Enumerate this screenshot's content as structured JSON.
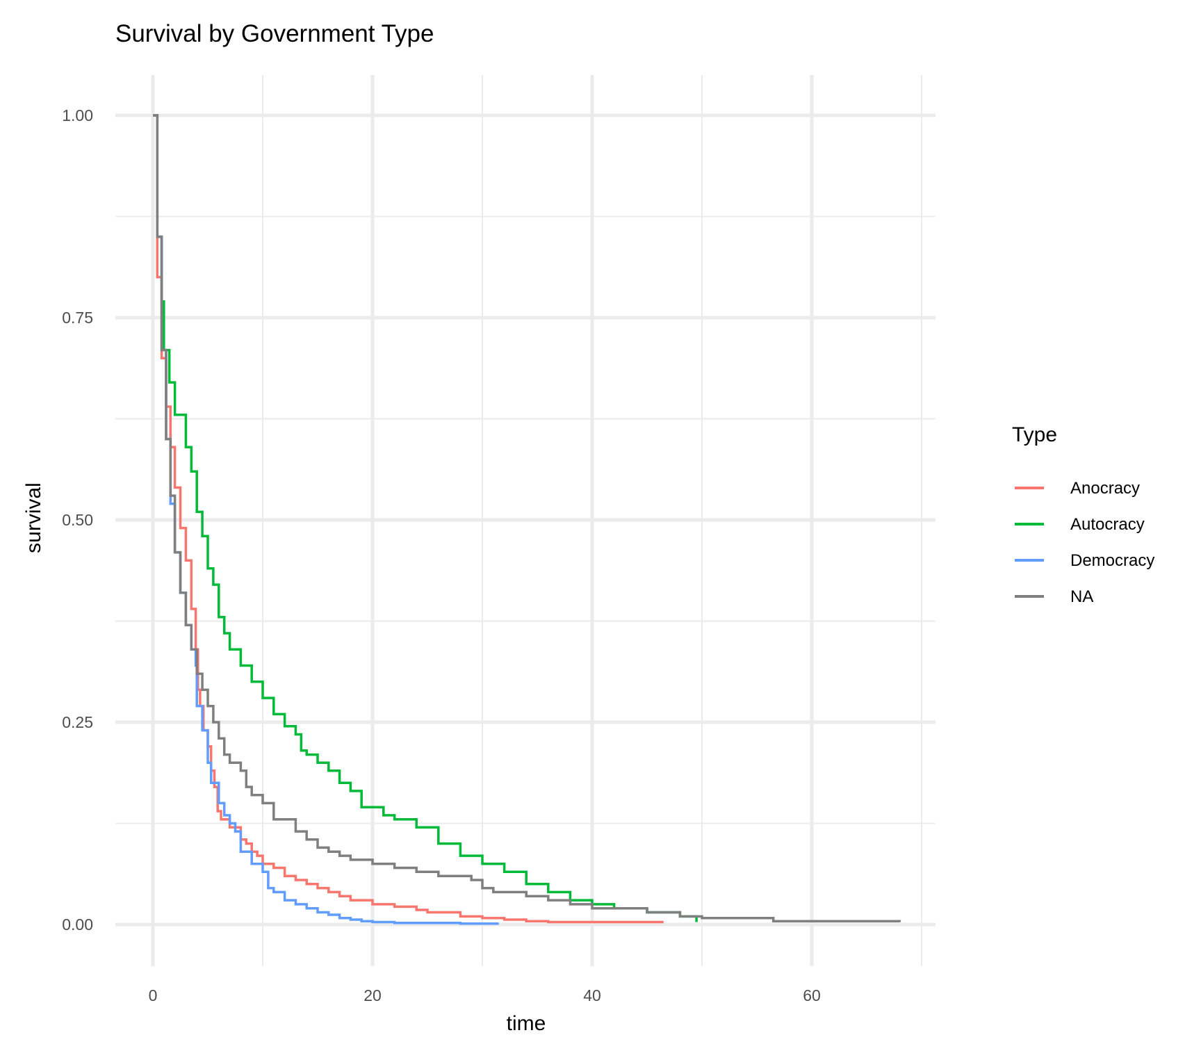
{
  "chart_data": {
    "type": "line",
    "title": "Survival by Government Type",
    "xlabel": "time",
    "ylabel": "survival",
    "xlim": [
      -3.5,
      71.5
    ],
    "ylim": [
      -0.05,
      1.05
    ],
    "x_ticks": [
      0,
      20,
      40,
      60
    ],
    "x_tick_labels": [
      "0",
      "20",
      "40",
      "60"
    ],
    "x_minor_ticks": [
      10,
      30,
      50,
      70
    ],
    "y_ticks": [
      0,
      0.25,
      0.5,
      0.75,
      1.0
    ],
    "y_tick_labels": [
      "0.00",
      "0.25",
      "0.50",
      "0.75",
      "1.00"
    ],
    "y_minor_ticks": [
      0.125,
      0.375,
      0.625,
      0.875
    ],
    "grid": true,
    "legend_title": "Type",
    "legend_position": "right",
    "series": [
      {
        "name": "Anocracy",
        "color": "#F8766D",
        "x": [
          0,
          0.4,
          0.8,
          1.2,
          1.6,
          2.0,
          2.5,
          3.0,
          3.5,
          3.9,
          4.1,
          4.3,
          4.6,
          5.0,
          5.3,
          5.6,
          5.9,
          6.2,
          7.0,
          8.0,
          8.5,
          9.0,
          9.5,
          10.0,
          11.0,
          12.0,
          13.0,
          14.0,
          15.0,
          16.0,
          17.0,
          18.0,
          19.0,
          20.0,
          22.0,
          24.0,
          25.0,
          28.0,
          30.0,
          32.0,
          34.0,
          36.0,
          40.0,
          46.5
        ],
        "y": [
          1.0,
          0.8,
          0.7,
          0.64,
          0.59,
          0.54,
          0.49,
          0.45,
          0.39,
          0.34,
          0.29,
          0.27,
          0.24,
          0.22,
          0.19,
          0.17,
          0.14,
          0.13,
          0.12,
          0.105,
          0.1,
          0.09,
          0.085,
          0.075,
          0.07,
          0.06,
          0.055,
          0.05,
          0.045,
          0.04,
          0.035,
          0.03,
          0.03,
          0.025,
          0.022,
          0.018,
          0.015,
          0.01,
          0.008,
          0.006,
          0.004,
          0.003,
          0.003,
          0.003
        ]
      },
      {
        "name": "Autocracy",
        "color": "#00BA38",
        "x": [
          0,
          0.4,
          0.8,
          1.0,
          1.5,
          2.0,
          3.0,
          3.5,
          4.0,
          4.5,
          5.0,
          5.5,
          6.0,
          6.5,
          7.0,
          8.0,
          9.0,
          10.0,
          11.0,
          12.0,
          13.0,
          13.5,
          14.0,
          15.0,
          16.0,
          17.0,
          18.0,
          19.0,
          20.0,
          21.0,
          22.0,
          24.0,
          26.0,
          28.0,
          30.0,
          32.0,
          34.0,
          36.0,
          38.0,
          40.0,
          42.0,
          45.0,
          48.0,
          49.5
        ],
        "y": [
          1.0,
          0.85,
          0.77,
          0.71,
          0.67,
          0.63,
          0.59,
          0.56,
          0.51,
          0.48,
          0.44,
          0.42,
          0.38,
          0.36,
          0.34,
          0.32,
          0.3,
          0.28,
          0.26,
          0.245,
          0.235,
          0.215,
          0.21,
          0.2,
          0.19,
          0.175,
          0.165,
          0.145,
          0.145,
          0.135,
          0.13,
          0.12,
          0.1,
          0.085,
          0.075,
          0.065,
          0.05,
          0.04,
          0.03,
          0.025,
          0.02,
          0.015,
          0.01,
          0.003
        ]
      },
      {
        "name": "Democracy",
        "color": "#619CFF",
        "x": [
          0,
          0.4,
          0.8,
          1.2,
          1.6,
          2.0,
          2.5,
          3.0,
          3.5,
          3.9,
          4.0,
          4.5,
          5.0,
          5.3,
          6.0,
          6.5,
          7.0,
          7.5,
          8.0,
          9.0,
          10.0,
          10.5,
          11.0,
          12.0,
          13.0,
          14.0,
          15.0,
          16.0,
          17.0,
          18.0,
          19.0,
          20.0,
          22.0,
          25.0,
          28.0,
          31.5
        ],
        "y": [
          1.0,
          0.85,
          0.71,
          0.6,
          0.52,
          0.46,
          0.41,
          0.37,
          0.34,
          0.32,
          0.27,
          0.24,
          0.2,
          0.175,
          0.15,
          0.135,
          0.125,
          0.115,
          0.09,
          0.075,
          0.065,
          0.045,
          0.04,
          0.03,
          0.025,
          0.02,
          0.015,
          0.012,
          0.008,
          0.006,
          0.004,
          0.003,
          0.002,
          0.002,
          0.001,
          0.001
        ]
      },
      {
        "name": "NA",
        "color": "#7F7F7F",
        "x": [
          0,
          0.4,
          0.8,
          1.2,
          1.6,
          2.0,
          2.5,
          3.0,
          3.5,
          4.0,
          4.5,
          5.0,
          5.5,
          6.0,
          6.5,
          7.0,
          8.0,
          8.5,
          9.0,
          10.0,
          11.0,
          11.5,
          13.0,
          14.0,
          15.0,
          16.0,
          17.0,
          18.0,
          20.0,
          22.0,
          24.0,
          26.0,
          29.0,
          30.0,
          31.0,
          34.0,
          36.0,
          38.0,
          40.0,
          45.0,
          48.0,
          50.0,
          56.5,
          68.0
        ],
        "y": [
          1.0,
          0.85,
          0.71,
          0.6,
          0.53,
          0.46,
          0.41,
          0.37,
          0.34,
          0.31,
          0.29,
          0.27,
          0.25,
          0.23,
          0.21,
          0.2,
          0.19,
          0.17,
          0.16,
          0.15,
          0.13,
          0.13,
          0.115,
          0.105,
          0.095,
          0.09,
          0.085,
          0.08,
          0.075,
          0.07,
          0.065,
          0.06,
          0.055,
          0.045,
          0.04,
          0.035,
          0.03,
          0.025,
          0.02,
          0.015,
          0.01,
          0.008,
          0.004,
          0.003
        ]
      }
    ]
  }
}
